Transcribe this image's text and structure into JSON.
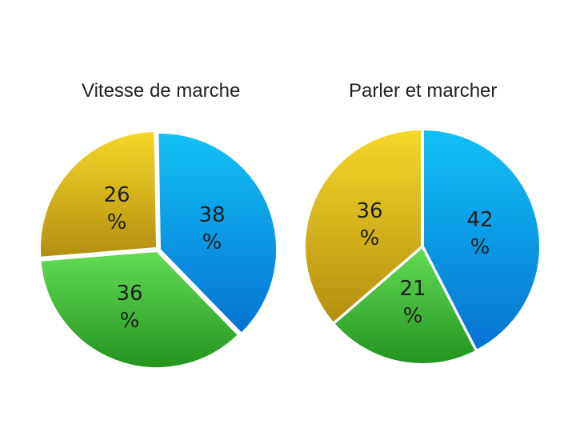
{
  "chart_data": [
    {
      "type": "pie",
      "title": "Vitesse de marche",
      "slices": [
        {
          "value": 38,
          "color": "#0aa6e6",
          "value_label": "38",
          "unit_label": "%"
        },
        {
          "value": 36,
          "color": "#4cc23e",
          "value_label": "36",
          "unit_label": "%"
        },
        {
          "value": 26,
          "color": "#e2bd1e",
          "value_label": "26",
          "unit_label": "%"
        }
      ]
    },
    {
      "type": "pie",
      "title": "Parler et marcher",
      "slices": [
        {
          "value": 42,
          "color": "#0aa6e6",
          "value_label": "42",
          "unit_label": "%"
        },
        {
          "value": 21,
          "color": "#4cc23e",
          "value_label": "21",
          "unit_label": "%"
        },
        {
          "value": 36,
          "color": "#e2bd1e",
          "value_label": "36",
          "unit_label": "%"
        }
      ]
    }
  ]
}
